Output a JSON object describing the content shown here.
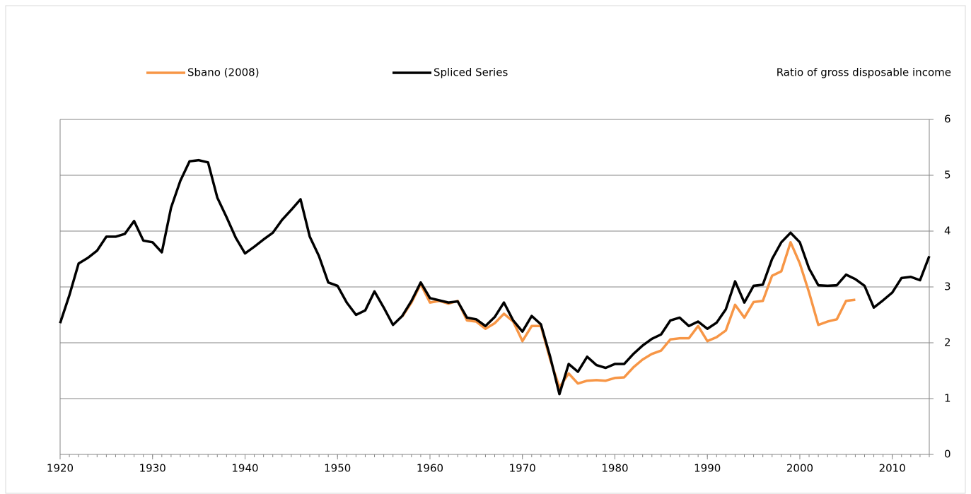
{
  "chart_data": {
    "type": "line",
    "y_label": "Ratio of gross disposable income",
    "legend": "top",
    "grid": true,
    "x": [
      1920,
      1921,
      1922,
      1923,
      1924,
      1925,
      1926,
      1927,
      1928,
      1929,
      1930,
      1931,
      1932,
      1933,
      1934,
      1935,
      1936,
      1937,
      1938,
      1939,
      1940,
      1941,
      1942,
      1943,
      1944,
      1945,
      1946,
      1947,
      1948,
      1949,
      1950,
      1951,
      1952,
      1953,
      1954,
      1955,
      1956,
      1957,
      1958,
      1959,
      1960,
      1961,
      1962,
      1963,
      1964,
      1965,
      1966,
      1967,
      1968,
      1969,
      1970,
      1971,
      1972,
      1973,
      1974,
      1975,
      1976,
      1977,
      1978,
      1979,
      1980,
      1981,
      1982,
      1983,
      1984,
      1985,
      1986,
      1987,
      1988,
      1989,
      1990,
      1991,
      1992,
      1993,
      1994,
      1995,
      1996,
      1997,
      1998,
      1999,
      2000,
      2001,
      2002,
      2003,
      2004,
      2005,
      2006,
      2007,
      2008,
      2009,
      2010,
      2011,
      2012,
      2013,
      2014
    ],
    "series": [
      {
        "name": "Sbano (2008)",
        "color": "#f79646",
        "values": [
          null,
          null,
          null,
          null,
          null,
          null,
          null,
          null,
          null,
          null,
          null,
          null,
          null,
          null,
          null,
          null,
          null,
          null,
          null,
          null,
          null,
          null,
          null,
          null,
          null,
          null,
          null,
          null,
          null,
          null,
          null,
          null,
          null,
          null,
          null,
          null,
          null,
          2.47,
          2.72,
          3.05,
          2.72,
          2.75,
          2.7,
          2.75,
          2.4,
          2.38,
          2.25,
          2.35,
          2.52,
          2.38,
          2.03,
          2.3,
          2.3,
          1.7,
          1.2,
          1.45,
          1.27,
          1.32,
          1.33,
          1.32,
          1.37,
          1.38,
          1.56,
          1.7,
          1.8,
          1.86,
          2.06,
          2.08,
          2.08,
          2.3,
          2.03,
          2.1,
          2.22,
          2.68,
          2.45,
          2.73,
          2.75,
          3.2,
          3.28,
          3.8,
          3.42,
          2.9,
          2.32,
          2.38,
          2.42,
          2.75,
          2.77,
          null,
          null,
          null,
          null,
          null,
          null,
          null,
          null
        ]
      },
      {
        "name": "Spliced Series",
        "color": "#000000",
        "values": [
          2.35,
          2.85,
          3.42,
          3.52,
          3.65,
          3.9,
          3.9,
          3.95,
          4.18,
          3.83,
          3.8,
          3.62,
          4.42,
          4.9,
          5.25,
          5.27,
          5.23,
          4.6,
          4.25,
          3.88,
          3.6,
          3.72,
          3.85,
          3.97,
          4.2,
          4.38,
          4.57,
          3.9,
          3.55,
          3.08,
          3.02,
          2.72,
          2.5,
          2.58,
          2.92,
          2.63,
          2.32,
          2.48,
          2.75,
          3.08,
          2.8,
          2.76,
          2.72,
          2.74,
          2.45,
          2.42,
          2.3,
          2.46,
          2.72,
          2.4,
          2.2,
          2.48,
          2.33,
          1.75,
          1.08,
          1.62,
          1.48,
          1.75,
          1.6,
          1.55,
          1.62,
          1.62,
          1.8,
          1.95,
          2.07,
          2.15,
          2.4,
          2.45,
          2.3,
          2.38,
          2.25,
          2.36,
          2.6,
          3.1,
          2.72,
          3.02,
          3.04,
          3.5,
          3.8,
          3.97,
          3.8,
          3.33,
          3.03,
          3.02,
          3.03,
          3.22,
          3.14,
          3.02,
          2.63,
          2.76,
          2.9,
          3.16,
          3.18,
          3.12,
          3.55
        ]
      }
    ],
    "xlim": [
      1920,
      2014
    ],
    "xticks": [
      1920,
      1930,
      1940,
      1950,
      1960,
      1970,
      1980,
      1990,
      2000,
      2010
    ],
    "ylim": [
      0,
      6
    ],
    "yticks": [
      0,
      1,
      2,
      3,
      4,
      5,
      6
    ]
  }
}
